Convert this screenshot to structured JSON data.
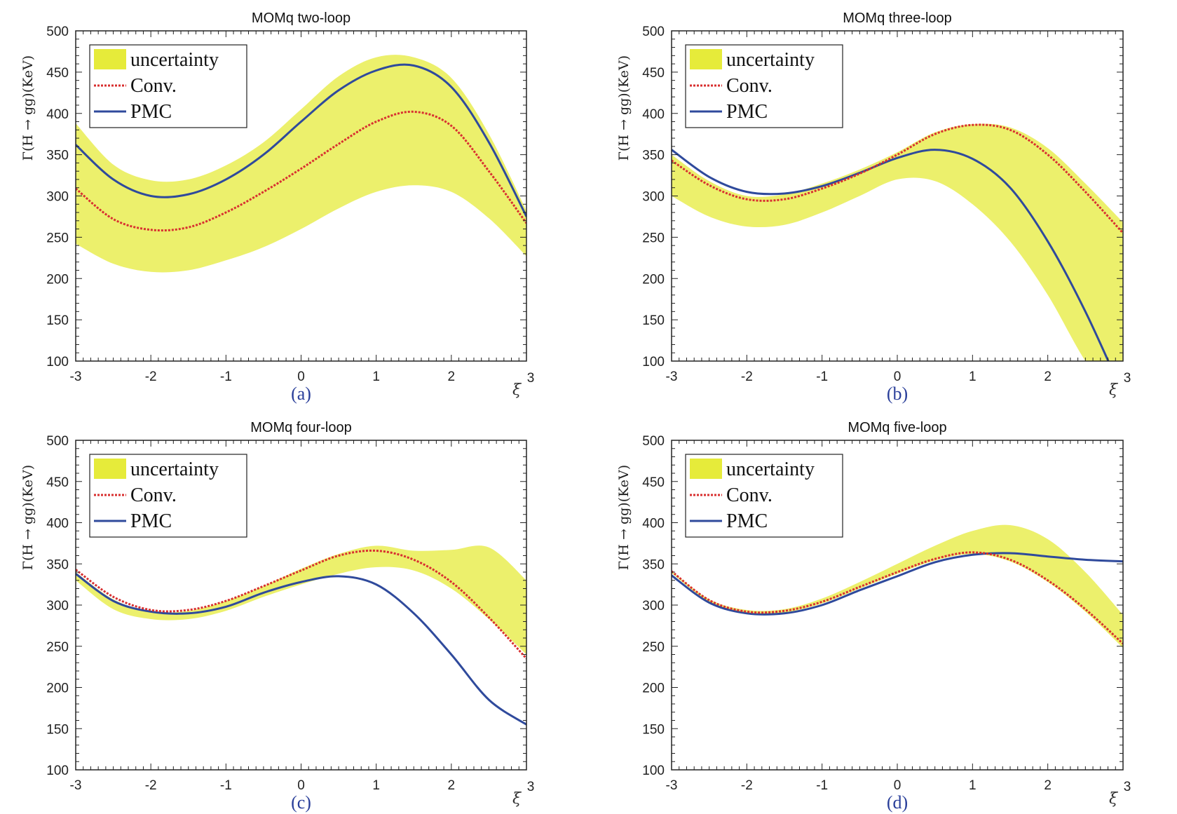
{
  "figure": {
    "colors": {
      "band": "#ecf06c",
      "band_legend": "#e6eb3a",
      "conv": "#d83030",
      "pmc": "#2f4a9c",
      "axis": "#222222",
      "caption": "#2a3f9a"
    },
    "legend": {
      "uncertainty": "uncertainty",
      "conv": "Conv.",
      "pmc": "PMC"
    },
    "ylabel": "Γ(H → gg)(KeV)",
    "xlabel": "ξ"
  },
  "chart_data": [
    {
      "type": "line",
      "title": "MOMq two-loop",
      "caption": "(a)",
      "xlabel": "ξ",
      "ylabel": "Γ(H → gg)(KeV)",
      "xlim": [
        -3,
        3
      ],
      "ylim": [
        100,
        500
      ],
      "xticks": [
        "-3",
        "-2",
        "-1",
        "0",
        "1",
        "2",
        "3"
      ],
      "yticks": [
        "100",
        "150",
        "200",
        "250",
        "300",
        "350",
        "400",
        "450",
        "500"
      ],
      "legend_position": "top-left",
      "x": [
        -3,
        -2.5,
        -2,
        -1.5,
        -1,
        -0.5,
        0,
        0.5,
        1,
        1.5,
        2,
        2.5,
        3
      ],
      "series": [
        {
          "name": "PMC",
          "values": [
            362,
            320,
            300,
            302,
            320,
            350,
            390,
            428,
            452,
            458,
            432,
            365,
            275
          ]
        },
        {
          "name": "Conv.",
          "values": [
            309,
            272,
            259,
            262,
            280,
            305,
            333,
            363,
            390,
            402,
            385,
            330,
            267
          ]
        }
      ],
      "band": {
        "name": "uncertainty",
        "upper": [
          388,
          338,
          319,
          320,
          337,
          365,
          405,
          445,
          468,
          468,
          443,
          375,
          282
        ],
        "lower": [
          242,
          218,
          208,
          210,
          222,
          238,
          260,
          285,
          305,
          313,
          305,
          273,
          227
        ]
      }
    },
    {
      "type": "line",
      "title": "MOMq three-loop",
      "caption": "(b)",
      "xlabel": "ξ",
      "ylabel": "Γ(H → gg)(KeV)",
      "xlim": [
        -3,
        3
      ],
      "ylim": [
        100,
        500
      ],
      "xticks": [
        "-3",
        "-2",
        "-1",
        "0",
        "1",
        "2",
        "3"
      ],
      "yticks": [
        "100",
        "150",
        "200",
        "250",
        "300",
        "350",
        "400",
        "450",
        "500"
      ],
      "legend_position": "top-left",
      "x": [
        -3,
        -2.5,
        -2,
        -1.5,
        -1,
        -0.5,
        0,
        0.5,
        1,
        1.5,
        2,
        2.5,
        3
      ],
      "series": [
        {
          "name": "PMC",
          "values": [
            356,
            323,
            305,
            303,
            312,
            328,
            346,
            356,
            345,
            310,
            245,
            160,
            60
          ]
        },
        {
          "name": "Conv.",
          "values": [
            343,
            313,
            296,
            296,
            309,
            327,
            350,
            375,
            386,
            380,
            350,
            305,
            255
          ]
        }
      ],
      "band": {
        "name": "uncertainty",
        "upper": [
          350,
          318,
          300,
          302,
          315,
          332,
          353,
          377,
          387,
          383,
          358,
          315,
          268
        ],
        "lower": [
          300,
          275,
          263,
          265,
          280,
          300,
          320,
          318,
          290,
          245,
          180,
          100,
          40
        ]
      }
    },
    {
      "type": "line",
      "title": "MOMq four-loop",
      "caption": "(c)",
      "xlabel": "ξ",
      "ylabel": "Γ(H → gg)(KeV)",
      "xlim": [
        -3,
        3
      ],
      "ylim": [
        100,
        500
      ],
      "xticks": [
        "-3",
        "-2",
        "-1",
        "0",
        "1",
        "2",
        "3"
      ],
      "yticks": [
        "100",
        "150",
        "200",
        "250",
        "300",
        "350",
        "400",
        "450",
        "500"
      ],
      "legend_position": "top-left",
      "x": [
        -3,
        -2.5,
        -2,
        -1.5,
        -1,
        -0.5,
        0,
        0.5,
        1,
        1.5,
        2,
        2.5,
        3
      ],
      "series": [
        {
          "name": "PMC",
          "values": [
            338,
            305,
            292,
            290,
            298,
            315,
            328,
            335,
            325,
            290,
            240,
            185,
            155
          ]
        },
        {
          "name": "Conv.",
          "values": [
            343,
            310,
            294,
            294,
            305,
            323,
            342,
            360,
            366,
            355,
            328,
            285,
            235
          ]
        }
      ],
      "band": {
        "name": "uncertainty",
        "upper": [
          340,
          307,
          292,
          293,
          305,
          323,
          344,
          362,
          372,
          366,
          367,
          370,
          330
        ],
        "lower": [
          330,
          295,
          283,
          283,
          293,
          310,
          325,
          338,
          346,
          342,
          320,
          283,
          240
        ]
      }
    },
    {
      "type": "line",
      "title": "MOMq five-loop",
      "caption": "(d)",
      "xlabel": "ξ",
      "ylabel": "Γ(H → gg)(KeV)",
      "xlim": [
        -3,
        3
      ],
      "ylim": [
        100,
        500
      ],
      "xticks": [
        "-3",
        "-2",
        "-1",
        "0",
        "1",
        "2",
        "3"
      ],
      "yticks": [
        "100",
        "150",
        "200",
        "250",
        "300",
        "350",
        "400",
        "450",
        "500"
      ],
      "legend_position": "top-left",
      "x": [
        -3,
        -2.5,
        -2,
        -1.5,
        -1,
        -0.5,
        0,
        0.5,
        1,
        1.5,
        2,
        2.5,
        3
      ],
      "series": [
        {
          "name": "PMC",
          "values": [
            336,
            303,
            290,
            290,
            300,
            318,
            335,
            352,
            361,
            363,
            359,
            355,
            353
          ]
        },
        {
          "name": "Conv.",
          "values": [
            341,
            306,
            292,
            293,
            304,
            322,
            340,
            356,
            364,
            355,
            330,
            295,
            253
          ]
        }
      ],
      "band": {
        "name": "uncertainty",
        "upper": [
          341,
          307,
          294,
          295,
          308,
          328,
          350,
          372,
          390,
          397,
          380,
          340,
          288
        ],
        "lower": [
          339,
          304,
          290,
          291,
          302,
          320,
          338,
          354,
          362,
          353,
          328,
          292,
          248
        ]
      }
    }
  ]
}
